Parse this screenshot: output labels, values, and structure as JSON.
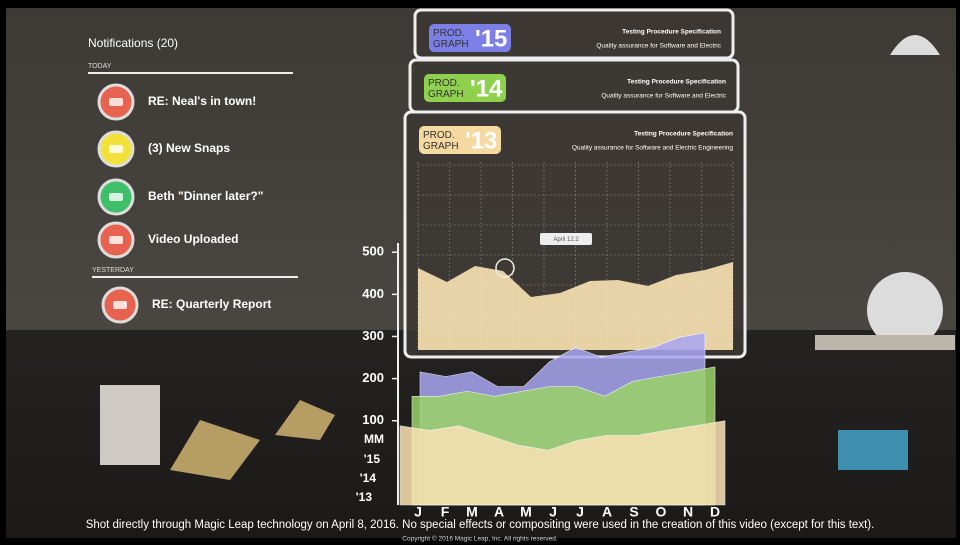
{
  "notifications": {
    "title": "Notifications (20)",
    "today": "TODAY",
    "yesterday": "YESTERDAY",
    "items": [
      {
        "text": "RE: Neal's in town!",
        "color": "#e8634f"
      },
      {
        "text": "(3) New Snaps",
        "color": "#f2e13a"
      },
      {
        "text": "Beth  \"Dinner later?\"",
        "color": "#3fbf6a"
      },
      {
        "text": "Video Uploaded",
        "color": "#e8634f"
      },
      {
        "text": "RE: Quarterly Report",
        "color": "#e8634f"
      }
    ]
  },
  "panels": [
    {
      "badge": "PROD.\nGRAPH",
      "year": "'15",
      "color": "#7b7fe6",
      "heading": "Testing Procedure Specification",
      "text": "Quality assurance for Software and Electric"
    },
    {
      "badge": "PROD.\nGRAPH",
      "year": "'14",
      "color": "#8fd14f",
      "heading": "Testing Procedure Specification",
      "text": "Quality assurance for Software and Electric"
    },
    {
      "badge": "PROD.\nGRAPH",
      "year": "'13",
      "color": "#f6d9a0",
      "heading": "Testing Procedure Specification",
      "text": "Quality assurance for Software and Electric Engineering"
    }
  ],
  "tooltip": "April 12.2",
  "chart_data": {
    "type": "area",
    "categories": [
      "J",
      "F",
      "M",
      "A",
      "M",
      "J",
      "J",
      "A",
      "S",
      "O",
      "N",
      "D"
    ],
    "ylim": [
      -100,
      510
    ],
    "yticks": [
      100,
      200,
      300,
      400,
      500
    ],
    "depth_labels": [
      "MM",
      "'15",
      "'14",
      "'13"
    ],
    "series": [
      {
        "name": "'15",
        "color": "#a9a6f2",
        "values": [
          216,
          205,
          216,
          181,
          181,
          240,
          274,
          251,
          263,
          274,
          298,
          309
        ]
      },
      {
        "name": "'14",
        "color": "#9bd26a",
        "values": [
          158,
          158,
          170,
          158,
          170,
          181,
          181,
          158,
          193,
          205,
          216,
          228
        ]
      },
      {
        "name": "'13",
        "color": "#fbe3b4",
        "values": [
          88,
          77,
          88,
          65,
          42,
          30,
          53,
          65,
          65,
          77,
          88,
          100
        ]
      }
    ]
  },
  "caption": "Shot directly through Magic Leap technology on April 8, 2016. No special effects or compositing were used in the creation of this video (except for this text).",
  "copyright": "Copyright © 2016 Magic Leap, Inc.  All rights reserved."
}
